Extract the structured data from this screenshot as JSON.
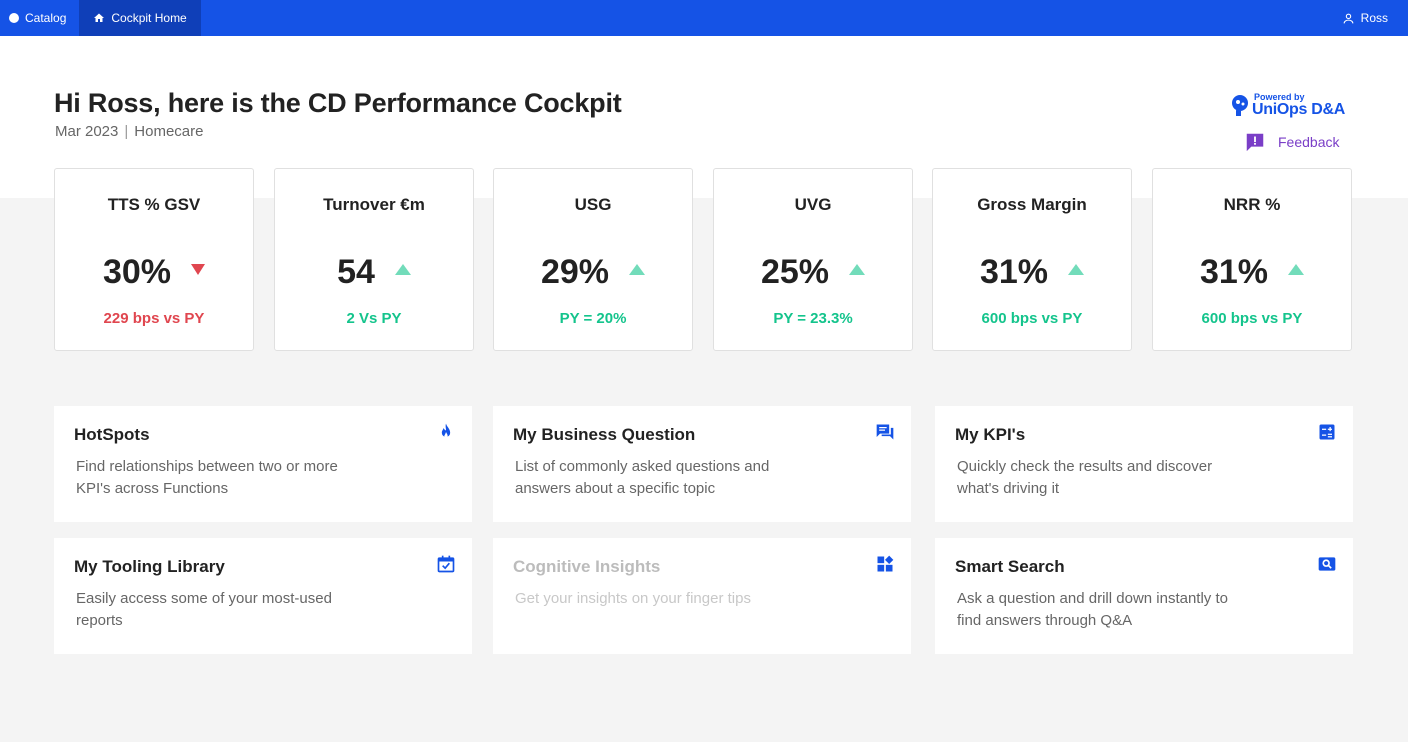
{
  "topbar": {
    "catalog": "Catalog",
    "home": "Cockpit Home",
    "user": "Ross"
  },
  "header": {
    "greeting": "Hi Ross, here is the CD Performance Cockpit",
    "period": "Mar 2023",
    "separator": "|",
    "category": "Homecare",
    "powered_by": "Powered by",
    "brand": "UniOps D&A",
    "feedback": "Feedback"
  },
  "kpis": [
    {
      "title": "TTS % GSV",
      "value": "30%",
      "trend": "down",
      "sub": "229 bps vs PY"
    },
    {
      "title": "Turnover €m",
      "value": "54",
      "trend": "up",
      "sub": "2 Vs PY"
    },
    {
      "title": "USG",
      "value": "29%",
      "trend": "up",
      "sub": "PY = 20%"
    },
    {
      "title": "UVG",
      "value": "25%",
      "trend": "up",
      "sub": "PY = 23.3%"
    },
    {
      "title": "Gross Margin",
      "value": "31%",
      "trend": "up",
      "sub": "600 bps vs PY"
    },
    {
      "title": "NRR %",
      "value": "31%",
      "trend": "up",
      "sub": "600 bps vs PY"
    }
  ],
  "tiles": [
    {
      "title": "HotSpots",
      "desc": "Find relationships between two or more KPI's across Functions",
      "icon": "flame-icon"
    },
    {
      "title": "My Business Question",
      "desc": "List of commonly asked questions and answers about a specific topic",
      "icon": "chat-icon"
    },
    {
      "title": "My KPI's",
      "desc": "Quickly check the results and discover what's driving it",
      "icon": "calculator-icon"
    },
    {
      "title": "My Tooling Library",
      "desc": "Easily access some of your most-used reports",
      "icon": "calendar-check-icon"
    },
    {
      "title": "Cognitive Insights",
      "desc": "Get your insights on your finger tips",
      "icon": "widgets-icon"
    },
    {
      "title": "Smart Search",
      "desc": "Ask a question and drill down instantly to find answers through Q&A",
      "icon": "search-icon"
    }
  ],
  "colors": {
    "primary": "#1553e6",
    "positive": "#14c48c",
    "negative": "#e0464f",
    "feedback": "#7a3ec7"
  }
}
